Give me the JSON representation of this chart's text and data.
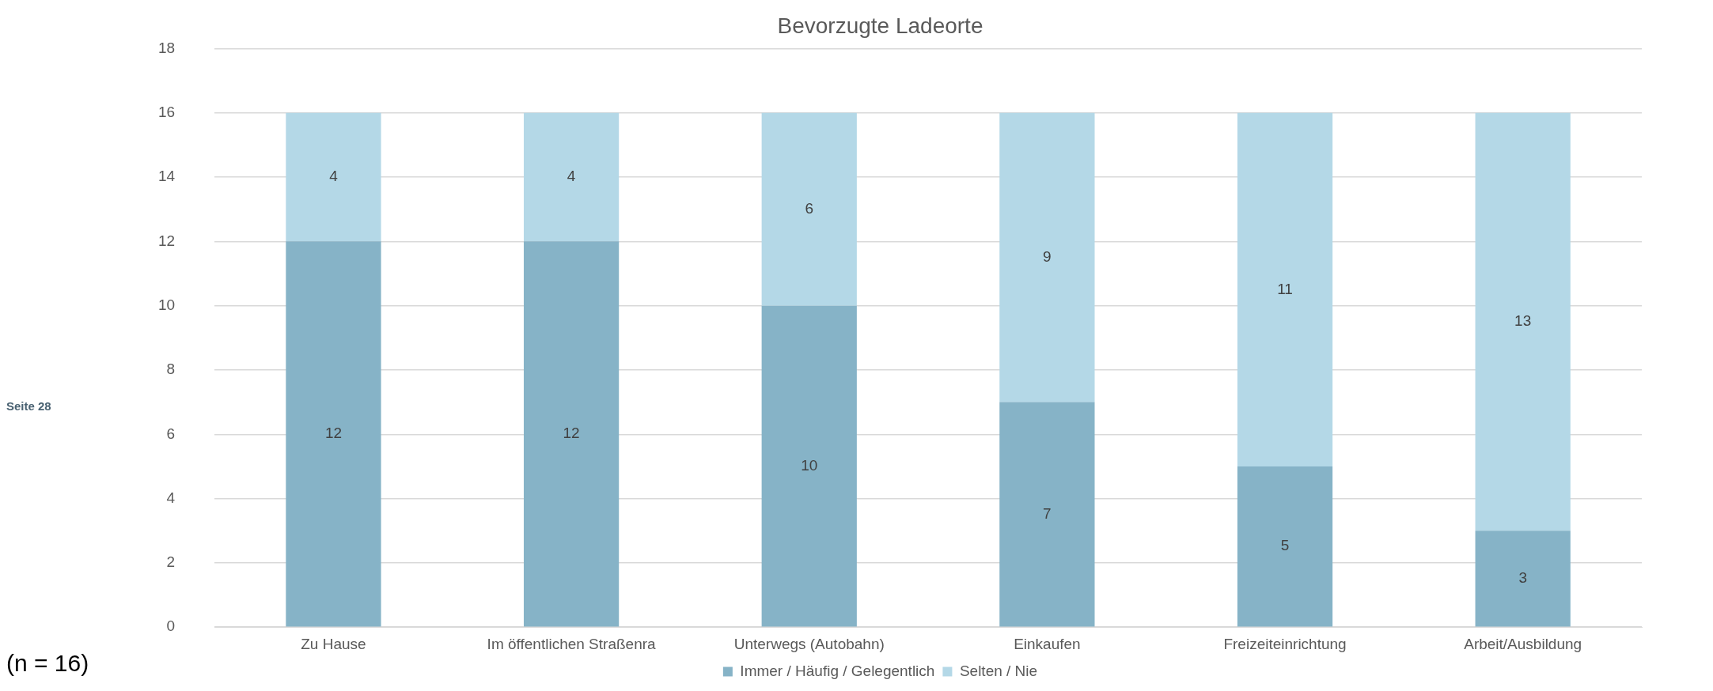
{
  "chart_data": {
    "type": "bar",
    "title": "Bevorzugte Ladeorte",
    "stacked": true,
    "categories": [
      "Zu Hause",
      "Im öffentlichen Straßenra",
      "Unterwegs (Autobahn)",
      "Einkaufen",
      "Freizeiteinrichtung",
      "Arbeit/Ausbildung"
    ],
    "series": [
      {
        "name": "Immer / Häufig / Gelegentlich",
        "color": "#86b3c7",
        "values": [
          12,
          12,
          10,
          7,
          5,
          3
        ]
      },
      {
        "name": "Selten / Nie",
        "color": "#b4d8e7",
        "values": [
          4,
          4,
          6,
          9,
          11,
          13
        ]
      }
    ],
    "ylim": [
      0,
      18
    ],
    "yticks": [
      0,
      2,
      4,
      6,
      8,
      10,
      12,
      14,
      16,
      18
    ],
    "grid": "y",
    "legend": "bottom",
    "data_labels": true,
    "annotations": [
      "Seite 28",
      "(n = 16)"
    ]
  }
}
